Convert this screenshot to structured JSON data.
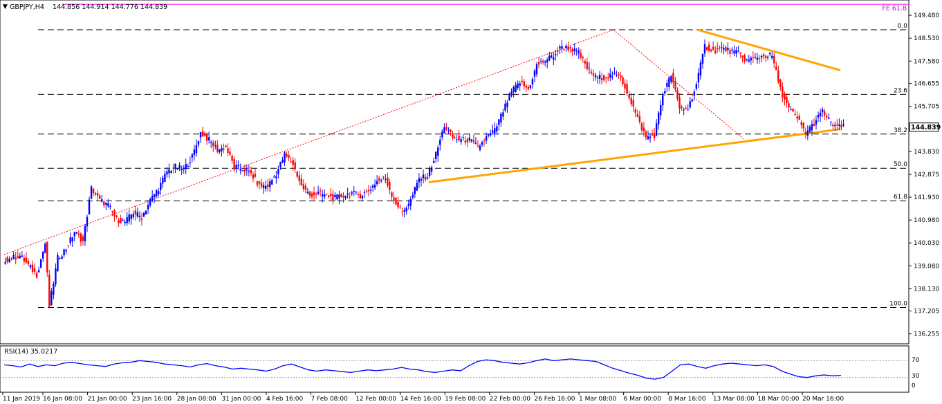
{
  "header": {
    "symbol": "GBPJPY,H4",
    "ohlc": "144.856 144.914 144.776 144.839",
    "fe_label": "FE 61.8"
  },
  "indicator": {
    "label": "RSI(14) 35.0217",
    "levels": [
      "70",
      "30",
      "0"
    ]
  },
  "colors": {
    "bull": "#0000ff",
    "bear": "#ff0000",
    "trendline": "#ffa500",
    "fe_line": "#ff00ff",
    "rsi_line": "#0000ff",
    "fib_trend": "#ff0000"
  },
  "chart_data": {
    "type": "line",
    "instrument": "GBPJPY",
    "timeframe": "H4",
    "last_price": "144.839",
    "y_ticks": [
      "149.480",
      "148.530",
      "147.580",
      "146.655",
      "145.705",
      "144.780",
      "143.830",
      "142.875",
      "141.930",
      "140.980",
      "140.030",
      "139.080",
      "138.130",
      "137.205",
      "136.255"
    ],
    "ylim": [
      135.9,
      150.0
    ],
    "x_labels": [
      "11 Jan 2019",
      "16 Jan 08:00",
      "21 Jan 00:00",
      "23 Jan 16:00",
      "28 Jan 08:00",
      "31 Jan 00:00",
      "4 Feb 16:00",
      "7 Feb 08:00",
      "12 Feb 00:00",
      "14 Feb 16:00",
      "19 Feb 08:00",
      "22 Feb 00:00",
      "26 Feb 16:00",
      "1 Mar 08:00",
      "6 Mar 00:00",
      "8 Mar 16:00",
      "13 Mar 08:00",
      "18 Mar 00:00",
      "20 Mar 16:00"
    ],
    "fib_levels": [
      {
        "label": "0.0",
        "price": 148.88
      },
      {
        "label": "23.6",
        "price": 146.2
      },
      {
        "label": "38.2",
        "price": 144.55
      },
      {
        "label": "50.0",
        "price": 143.13
      },
      {
        "label": "61.8",
        "price": 141.78
      },
      {
        "label": "100.0",
        "price": 137.35
      }
    ],
    "fe_price": 149.94,
    "price_path": [
      [
        0,
        139.3
      ],
      [
        4,
        139.5
      ],
      [
        8,
        138.7
      ],
      [
        10,
        140.0
      ],
      [
        11,
        137.4
      ],
      [
        13,
        139.4
      ],
      [
        15,
        139.8
      ],
      [
        17,
        140.5
      ],
      [
        19,
        140.1
      ],
      [
        21,
        142.3
      ],
      [
        23,
        141.8
      ],
      [
        25,
        141.6
      ],
      [
        27,
        141.0
      ],
      [
        29,
        140.9
      ],
      [
        31,
        141.3
      ],
      [
        33,
        141.1
      ],
      [
        35,
        141.8
      ],
      [
        37,
        142.3
      ],
      [
        39,
        143.0
      ],
      [
        41,
        143.2
      ],
      [
        43,
        143.1
      ],
      [
        45,
        143.6
      ],
      [
        47,
        144.6
      ],
      [
        49,
        144.3
      ],
      [
        51,
        143.9
      ],
      [
        53,
        144.0
      ],
      [
        55,
        143.2
      ],
      [
        57,
        143.1
      ],
      [
        59,
        142.9
      ],
      [
        61,
        142.4
      ],
      [
        63,
        142.4
      ],
      [
        65,
        142.9
      ],
      [
        67,
        143.7
      ],
      [
        69,
        143.3
      ],
      [
        71,
        142.4
      ],
      [
        73,
        142.0
      ],
      [
        75,
        142.1
      ],
      [
        77,
        142.0
      ],
      [
        79,
        141.9
      ],
      [
        81,
        142.0
      ],
      [
        83,
        142.1
      ],
      [
        85,
        142.0
      ],
      [
        87,
        142.2
      ],
      [
        89,
        142.6
      ],
      [
        91,
        142.7
      ],
      [
        93,
        141.8
      ],
      [
        95,
        141.3
      ],
      [
        97,
        141.8
      ],
      [
        99,
        142.7
      ],
      [
        101,
        142.8
      ],
      [
        103,
        143.7
      ],
      [
        105,
        144.9
      ],
      [
        107,
        144.4
      ],
      [
        109,
        144.3
      ],
      [
        111,
        144.3
      ],
      [
        113,
        144.0
      ],
      [
        115,
        144.4
      ],
      [
        117,
        144.7
      ],
      [
        119,
        145.5
      ],
      [
        121,
        146.3
      ],
      [
        123,
        146.7
      ],
      [
        125,
        146.4
      ],
      [
        127,
        147.4
      ],
      [
        129,
        147.6
      ],
      [
        131,
        147.8
      ],
      [
        133,
        148.2
      ],
      [
        135,
        148.1
      ],
      [
        137,
        147.9
      ],
      [
        139,
        147.3
      ],
      [
        141,
        146.9
      ],
      [
        143,
        146.9
      ],
      [
        145,
        147.0
      ],
      [
        147,
        146.9
      ],
      [
        149,
        146.1
      ],
      [
        151,
        145.2
      ],
      [
        153,
        144.4
      ],
      [
        155,
        144.5
      ],
      [
        157,
        146.2
      ],
      [
        159,
        147.0
      ],
      [
        161,
        145.6
      ],
      [
        163,
        145.6
      ],
      [
        165,
        146.6
      ],
      [
        167,
        148.2
      ],
      [
        169,
        148.0
      ],
      [
        171,
        148.1
      ],
      [
        173,
        148.0
      ],
      [
        175,
        147.9
      ],
      [
        177,
        147.6
      ],
      [
        179,
        147.7
      ],
      [
        181,
        147.8
      ],
      [
        183,
        147.8
      ],
      [
        185,
        146.4
      ],
      [
        187,
        145.6
      ],
      [
        189,
        145.2
      ],
      [
        191,
        144.6
      ],
      [
        193,
        145.0
      ],
      [
        195,
        145.5
      ],
      [
        197,
        145.0
      ],
      [
        199,
        144.839
      ]
    ],
    "trendlines": [
      {
        "from": [
          0,
          139.55
        ],
        "to": [
          145,
          148.88
        ],
        "style": "dotted-red"
      },
      {
        "from": [
          145,
          148.88
        ],
        "to": [
          176,
          144.35
        ],
        "style": "dotted-red"
      },
      {
        "from": [
          101,
          142.55
        ],
        "to": [
          199,
          144.75
        ],
        "style": "orange"
      },
      {
        "from": [
          165,
          148.88
        ],
        "to": [
          199,
          147.2
        ],
        "style": "orange"
      }
    ],
    "rsi": {
      "name": "RSI(14)",
      "last": 35.0217,
      "ylim": [
        0,
        100
      ],
      "levels": [
        70,
        30
      ],
      "values": [
        60,
        58,
        55,
        62,
        56,
        60,
        58,
        64,
        66,
        63,
        60,
        58,
        56,
        62,
        65,
        66,
        70,
        68,
        66,
        62,
        60,
        58,
        55,
        60,
        63,
        58,
        55,
        50,
        52,
        50,
        48,
        45,
        50,
        58,
        62,
        55,
        48,
        45,
        48,
        46,
        44,
        42,
        45,
        48,
        46,
        48,
        50,
        54,
        50,
        48,
        44,
        42,
        45,
        48,
        46,
        58,
        68,
        72,
        70,
        66,
        64,
        62,
        65,
        70,
        74,
        70,
        72,
        74,
        72,
        70,
        68,
        60,
        52,
        46,
        40,
        35,
        28,
        26,
        30,
        45,
        60,
        62,
        56,
        52,
        58,
        62,
        64,
        62,
        60,
        58,
        60,
        56,
        45,
        38,
        32,
        30,
        34,
        36,
        34,
        35
      ]
    }
  }
}
